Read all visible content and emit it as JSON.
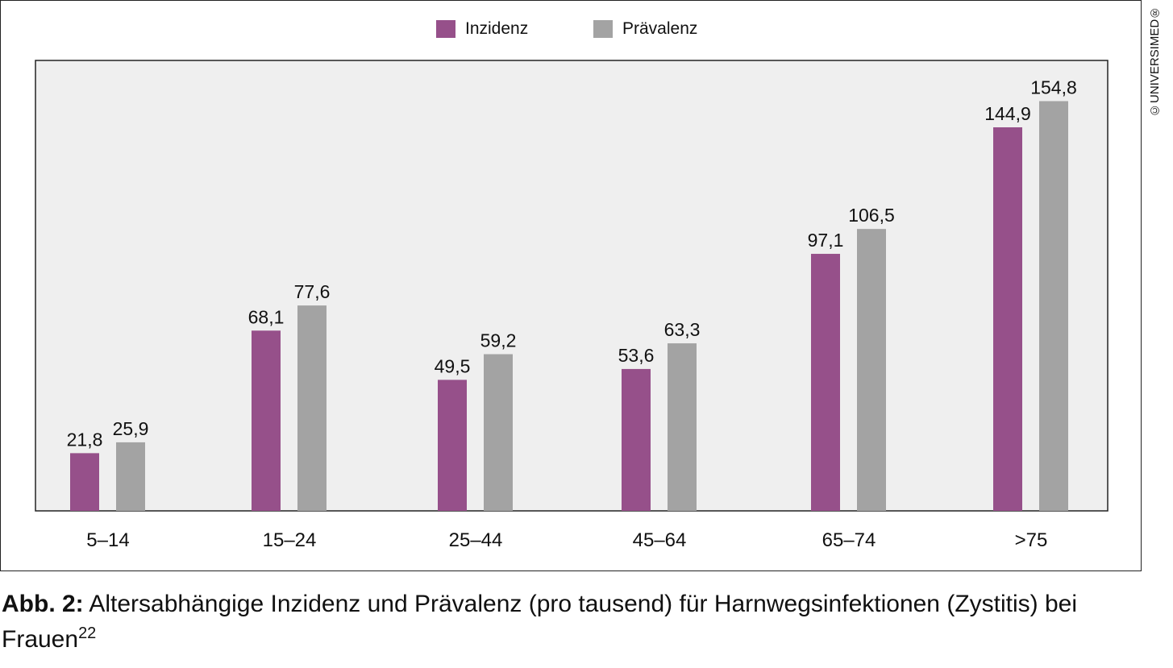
{
  "copyright": "©UNIVERSIMED®",
  "caption": {
    "prefix": "Abb. 2:",
    "text": " Altersabhängige Inzidenz und Prävalenz (pro tausend) für Harnwegsinfektionen (Zystitis) bei Frauen",
    "superscript": "22"
  },
  "chart_data": {
    "type": "bar",
    "categories": [
      "5–14",
      "15–24",
      "25–44",
      "45–64",
      "65–74",
      ">75"
    ],
    "series": [
      {
        "name": "Inzidenz",
        "color": "#96508a",
        "values": [
          21.8,
          68.1,
          49.5,
          53.6,
          97.1,
          144.9
        ],
        "labels": [
          "21,8",
          "68,1",
          "49,5",
          "53,6",
          "97,1",
          "144,9"
        ]
      },
      {
        "name": "Prävalenz",
        "color": "#a3a3a3",
        "values": [
          25.9,
          77.6,
          59.2,
          63.3,
          106.5,
          154.8
        ],
        "labels": [
          "25,9",
          "77,6",
          "59,2",
          "63,3",
          "106,5",
          "154,8"
        ]
      }
    ],
    "ylim": [
      0,
      170
    ],
    "grid": false,
    "legend": "top-center",
    "plot_background": "#efefef"
  }
}
